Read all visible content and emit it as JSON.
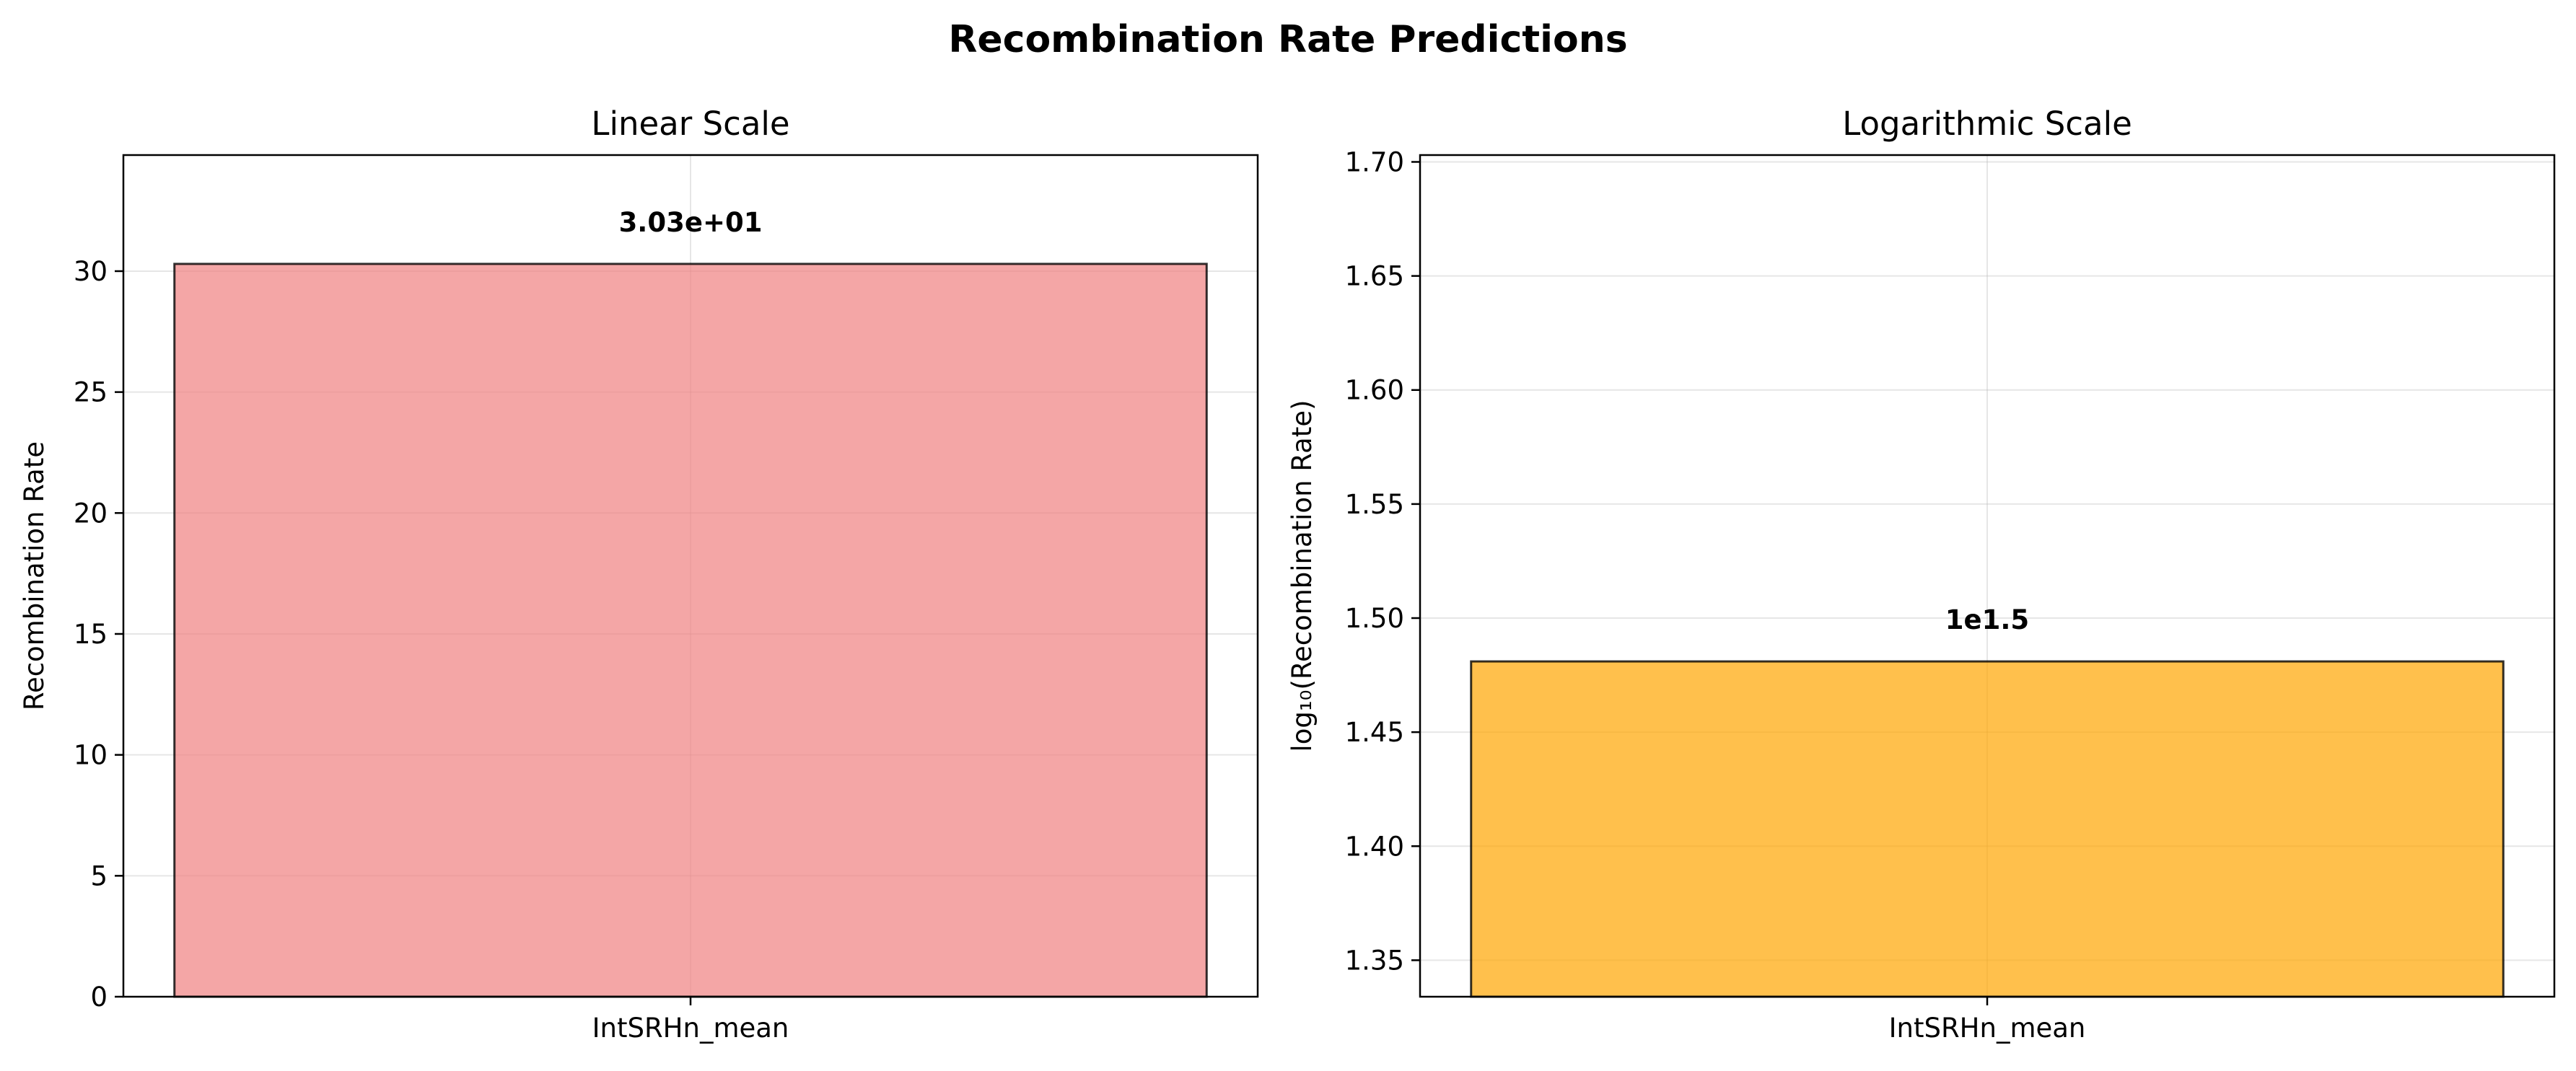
{
  "figure_title": "Recombination Rate Predictions",
  "chart_data": [
    {
      "type": "bar",
      "title": "Linear Scale",
      "xlabel": "",
      "ylabel": "Recombination Rate",
      "categories": [
        "IntSRHn_mean"
      ],
      "values": [
        30.3
      ],
      "bar_labels": [
        "3.03e+01"
      ],
      "ylim": [
        0,
        34.8
      ],
      "yticks": [
        0,
        5,
        10,
        15,
        20,
        25,
        30
      ],
      "ytick_labels": [
        "0",
        "5",
        "10",
        "15",
        "20",
        "25",
        "30"
      ],
      "grid": true,
      "bar_color": "#f08080",
      "bar_alpha": 0.7
    },
    {
      "type": "bar",
      "title": "Logarithmic Scale",
      "xlabel": "",
      "ylabel": "log₁₀(Recombination Rate)",
      "categories": [
        "IntSRHn_mean"
      ],
      "values": [
        1.481
      ],
      "bar_labels": [
        "1e1.5"
      ],
      "ylim": [
        1.334,
        1.703
      ],
      "yticks": [
        1.35,
        1.4,
        1.45,
        1.5,
        1.55,
        1.6,
        1.65,
        1.7
      ],
      "ytick_labels": [
        "1.35",
        "1.40",
        "1.45",
        "1.50",
        "1.55",
        "1.60",
        "1.65",
        "1.70"
      ],
      "grid": true,
      "bar_color": "#ffa500",
      "bar_alpha": 0.7
    }
  ]
}
